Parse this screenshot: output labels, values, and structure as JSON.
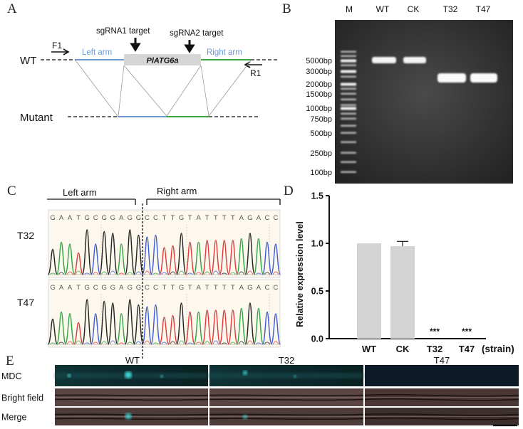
{
  "panels": {
    "A": {
      "letter": "A",
      "sgrna1": "sgRNA1 target",
      "sgrna2": "sgRNA2 target",
      "f1": "F1",
      "r1": "R1",
      "wt_label": "WT",
      "mutant_label": "Mutant",
      "left_arm": "Left arm",
      "right_arm": "Right arm",
      "gene": "PlATG6a",
      "colors": {
        "left_arm": "#6b9bd2",
        "right_arm": "#3aa640",
        "gene_box": "#d6d6d6"
      }
    },
    "B": {
      "letter": "B",
      "lanes": [
        "M",
        "WT",
        "CK",
        "T32",
        "T47"
      ],
      "ladder": [
        "5000bp",
        "3000bp",
        "2000bp",
        "1500bp",
        "1000bp",
        "750bp",
        "500bp",
        "250bp",
        "100bp"
      ]
    },
    "C": {
      "letter": "C",
      "left_arm": "Left arm",
      "right_arm": "Right arm",
      "samples": [
        "T32",
        "T47"
      ],
      "sequence": [
        "G",
        "A",
        "A",
        "T",
        "G",
        "C",
        "G",
        "G",
        "A",
        "G",
        "G",
        "C",
        "C",
        "T",
        "T",
        "G",
        "T",
        "A",
        "T",
        "T",
        "T",
        "T",
        "A",
        "G",
        "A",
        "C",
        "C"
      ]
    },
    "D": {
      "letter": "D",
      "chart_data": {
        "type": "bar",
        "categories": [
          "WT",
          "CK",
          "T32",
          "T47"
        ],
        "values": [
          1.0,
          0.97,
          0.0,
          0.0
        ],
        "error": [
          0,
          0.05,
          0,
          0
        ],
        "significance": [
          "",
          "",
          "***",
          "***"
        ],
        "ylabel": "Relative expression level",
        "xlabel": "(strain)",
        "ylim": [
          0,
          1.5
        ],
        "yticks": [
          "0.0",
          "0.5",
          "1.0",
          "1.5"
        ],
        "bar_color": "#d4d4d4"
      }
    },
    "E": {
      "letter": "E",
      "columns": [
        "WT",
        "T32",
        "T47"
      ],
      "rows": [
        "MDC",
        "Bright field",
        "Merge"
      ]
    }
  }
}
